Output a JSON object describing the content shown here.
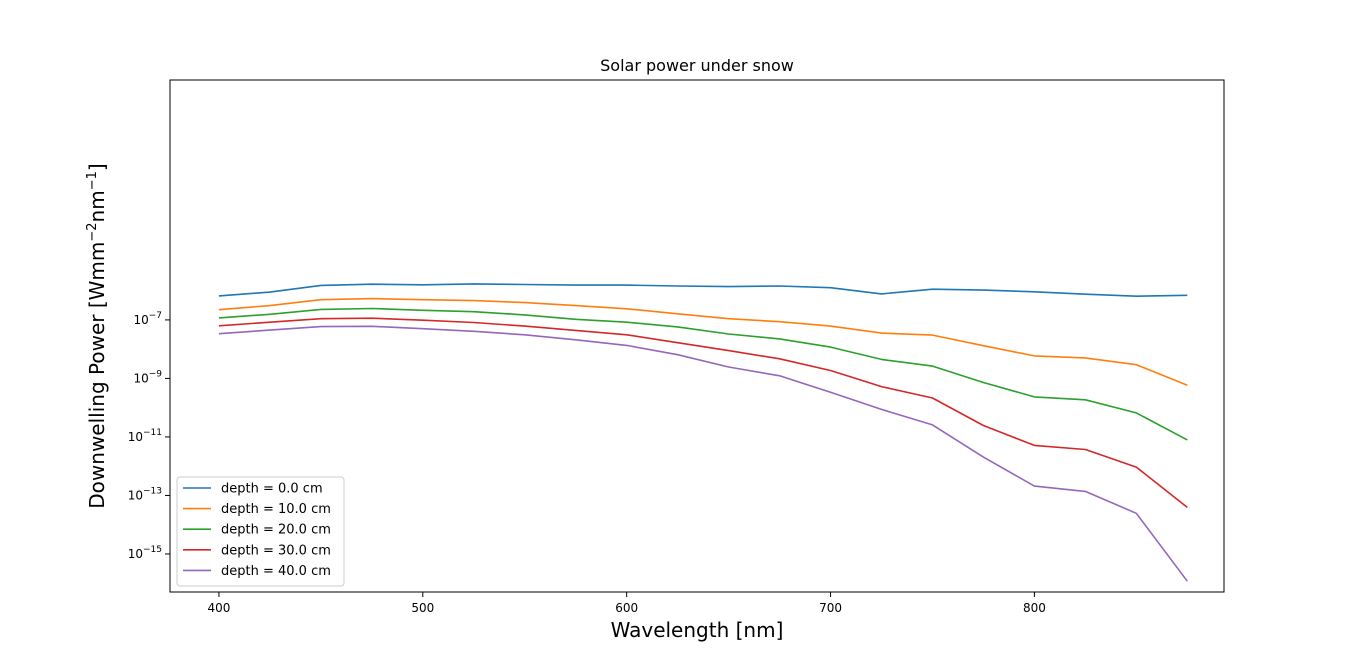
{
  "chart_data": {
    "type": "line",
    "title": "Solar power under snow",
    "xlabel": "Wavelength [nm]",
    "ylabel_parts": [
      "Downwelling Power [Wmm",
      "−2",
      "nm",
      "−1",
      "]"
    ],
    "xscale": "linear",
    "yscale": "log",
    "xlim": [
      376,
      893
    ],
    "ylim_exp": [
      -16.3,
      1.2
    ],
    "xticks": [
      400,
      500,
      600,
      700,
      800
    ],
    "yticks_exp": [
      -7,
      -9,
      -11,
      -13,
      -15
    ],
    "legend_position": "lower-left",
    "x": [
      400,
      425,
      450,
      475,
      500,
      525,
      550,
      575,
      600,
      625,
      650,
      675,
      700,
      725,
      750,
      775,
      800,
      825,
      850,
      875
    ],
    "series": [
      {
        "name": "depth = 0.0 cm",
        "color": "#1f77b4",
        "log10_values": [
          -6.18,
          -6.05,
          -5.82,
          -5.78,
          -5.8,
          -5.77,
          -5.79,
          -5.81,
          -5.81,
          -5.84,
          -5.86,
          -5.84,
          -5.9,
          -6.11,
          -5.95,
          -5.98,
          -6.04,
          -6.12,
          -6.19,
          -6.16
        ]
      },
      {
        "name": "depth = 10.0 cm",
        "color": "#ff7f0e",
        "log10_values": [
          -6.65,
          -6.51,
          -6.31,
          -6.27,
          -6.31,
          -6.34,
          -6.41,
          -6.51,
          -6.62,
          -6.79,
          -6.96,
          -7.06,
          -7.21,
          -7.45,
          -7.52,
          -7.88,
          -8.23,
          -8.3,
          -8.53,
          -9.23
        ]
      },
      {
        "name": "depth = 20.0 cm",
        "color": "#2ca02c",
        "log10_values": [
          -6.93,
          -6.81,
          -6.64,
          -6.61,
          -6.67,
          -6.72,
          -6.83,
          -6.98,
          -7.08,
          -7.24,
          -7.48,
          -7.65,
          -7.93,
          -8.35,
          -8.58,
          -9.14,
          -9.63,
          -9.73,
          -10.18,
          -11.1
        ]
      },
      {
        "name": "depth = 30.0 cm",
        "color": "#d62728",
        "log10_values": [
          -7.2,
          -7.08,
          -6.96,
          -6.94,
          -7.01,
          -7.09,
          -7.21,
          -7.36,
          -7.51,
          -7.78,
          -8.05,
          -8.33,
          -8.73,
          -9.28,
          -9.67,
          -10.61,
          -11.29,
          -11.43,
          -12.03,
          -13.41
        ]
      },
      {
        "name": "depth = 40.0 cm",
        "color": "#9467bd",
        "log10_values": [
          -7.47,
          -7.35,
          -7.23,
          -7.22,
          -7.3,
          -7.39,
          -7.51,
          -7.68,
          -7.87,
          -8.19,
          -8.61,
          -8.91,
          -9.47,
          -10.06,
          -10.59,
          -11.69,
          -12.68,
          -12.86,
          -13.61,
          -15.93
        ]
      }
    ]
  }
}
